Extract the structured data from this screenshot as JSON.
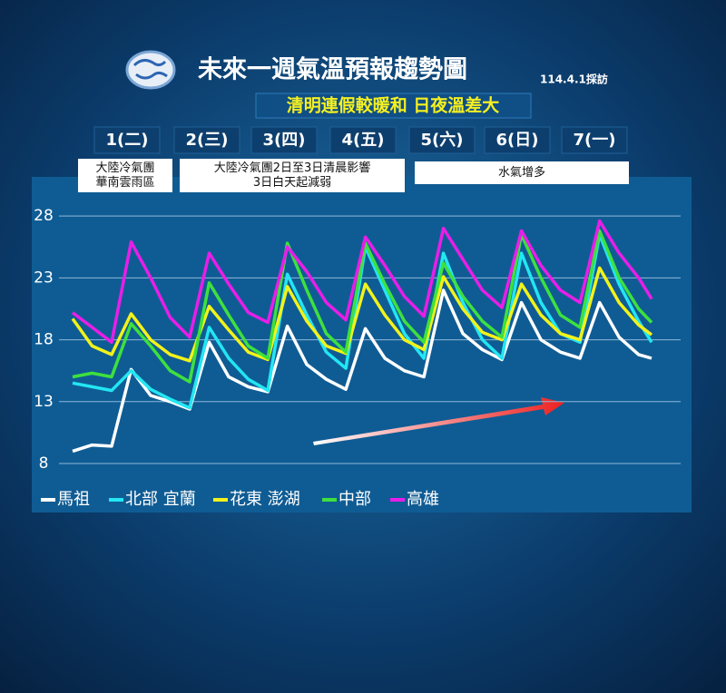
{
  "chart_data": {
    "type": "line",
    "title": "未來一週氣溫預報趨勢圖",
    "date_note": "114.4.1採訪",
    "subtitle": "清明連假較暖和 日夜溫差大",
    "days": [
      "1(二)",
      "2(三)",
      "3(四)",
      "4(五)",
      "5(六)",
      "6(日)",
      "7(一)"
    ],
    "annotations": [
      [
        "大陸冷氣團",
        "華南雲雨區"
      ],
      [
        "大陸冷氣團2日至3日清晨影響",
        "3日白天起減弱"
      ],
      [
        "水氣增多"
      ]
    ],
    "x": [
      0,
      6,
      12,
      18,
      24,
      30,
      36,
      42,
      48,
      54,
      60,
      66,
      72,
      78,
      84,
      90,
      96,
      102,
      108,
      114,
      120,
      126,
      132,
      138,
      144,
      150,
      156,
      162,
      168,
      174,
      178
    ],
    "xlim": [
      0,
      178
    ],
    "ylim": [
      6.5,
      30.5
    ],
    "yticks": [
      8,
      13,
      18,
      23,
      28
    ],
    "grid": true,
    "series": [
      {
        "name": "馬祖",
        "color": "#ffffff",
        "values": [
          9.0,
          9.5,
          9.4,
          15.6,
          13.5,
          13.0,
          12.4,
          17.8,
          15.0,
          14.2,
          13.8,
          19.1,
          16.0,
          14.8,
          14.0,
          18.9,
          16.5,
          15.5,
          15.0,
          22.0,
          18.5,
          17.2,
          16.4,
          21.0,
          18.0,
          17.0,
          16.5,
          21.0,
          18.2,
          16.8,
          16.5
        ]
      },
      {
        "name": "北部 宜蘭",
        "color": "#22e6f2",
        "values": [
          14.5,
          14.2,
          13.9,
          15.5,
          14.0,
          13.2,
          12.5,
          19.0,
          16.5,
          14.8,
          13.9,
          23.3,
          20.0,
          17.0,
          15.7,
          25.5,
          22.0,
          18.5,
          16.5,
          25.0,
          21.0,
          18.0,
          16.5,
          25.0,
          21.0,
          18.5,
          17.8,
          26.5,
          22.5,
          19.5,
          17.8
        ]
      },
      {
        "name": "花東 澎湖",
        "color": "#f2f21a",
        "values": [
          19.7,
          17.5,
          16.8,
          20.1,
          18.0,
          16.8,
          16.3,
          20.7,
          18.8,
          17.0,
          16.4,
          22.3,
          19.5,
          17.5,
          16.9,
          22.5,
          20.0,
          18.0,
          17.2,
          23.1,
          20.5,
          18.6,
          18.0,
          22.5,
          20.0,
          18.5,
          18.0,
          23.8,
          21.0,
          19.2,
          18.4
        ]
      },
      {
        "name": "中部",
        "color": "#3ee03e",
        "values": [
          15.0,
          15.3,
          15.0,
          19.3,
          17.5,
          15.5,
          14.6,
          22.6,
          20.0,
          17.5,
          16.5,
          25.8,
          22.0,
          18.5,
          17.0,
          25.8,
          22.5,
          19.5,
          17.8,
          24.2,
          21.5,
          19.5,
          18.2,
          26.5,
          23.0,
          20.0,
          19.0,
          26.8,
          23.0,
          20.5,
          19.4
        ]
      },
      {
        "name": "高雄",
        "color": "#e81ee8",
        "values": [
          20.2,
          19.0,
          17.8,
          25.9,
          23.0,
          19.8,
          18.2,
          25.0,
          22.5,
          20.2,
          19.4,
          25.5,
          23.5,
          21.0,
          19.6,
          26.3,
          24.0,
          21.5,
          19.9,
          27.0,
          24.5,
          22.0,
          20.6,
          26.8,
          24.0,
          22.0,
          21.0,
          27.6,
          25.0,
          23.0,
          21.3
        ]
      }
    ]
  }
}
